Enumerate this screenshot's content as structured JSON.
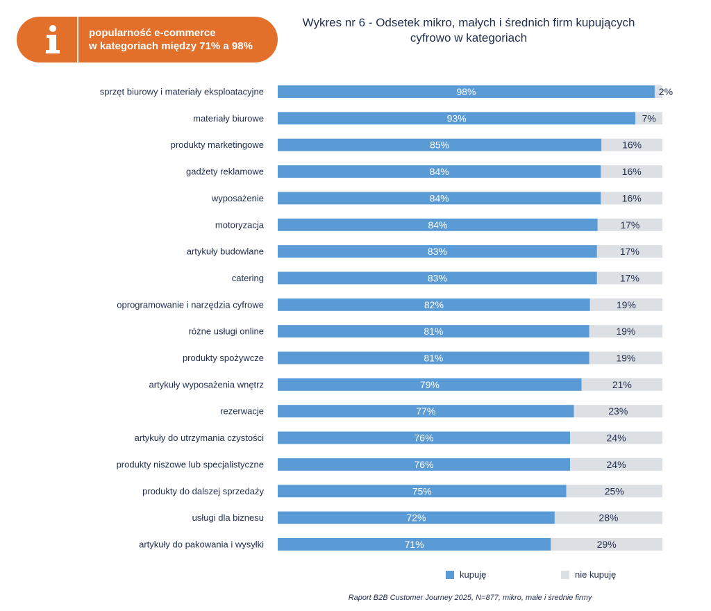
{
  "badge": {
    "icon": "info-icon",
    "line1": "popularność e-commerce",
    "line2": "w kategoriach między 71% a 98%",
    "color": "#e2702a"
  },
  "title": {
    "line1": "Wykres nr 6 - Odsetek mikro, małych i średnich firm kupujących",
    "line2": "cyfrowo w kategoriach"
  },
  "legend": {
    "buy": "kupuję",
    "not_buy": "nie kupuję"
  },
  "source": "Raport B2B Customer Journey 2025, N=877, mikro, małe i średnie firmy",
  "colors": {
    "buy": "#5b9bd5",
    "not_buy": "#dcdfe3"
  },
  "chart_data": {
    "type": "bar",
    "orientation": "horizontal",
    "stacked": true,
    "categories": [
      "sprzęt biurowy i materiały eksploatacyjne",
      "materiały biurowe",
      "produkty marketingowe",
      "gadżety reklamowe",
      "wyposażenie",
      "motoryzacja",
      "artykuły budowlane",
      "catering",
      "oprogramowanie i narzędzia cyfrowe",
      "różne usługi online",
      "produkty spożywcze",
      "artykuły wyposażenia wnętrz",
      "rezerwacje",
      "artykuły do utrzymania czystości",
      "produkty niszowe lub specjalistyczne",
      "produkty do dalszej sprzedaży",
      "usługi dla biznesu",
      "artykuły do pakowania i wysyłki"
    ],
    "series": [
      {
        "name": "kupuję",
        "values": [
          98,
          93,
          85,
          84,
          84,
          84,
          83,
          83,
          82,
          81,
          81,
          79,
          77,
          76,
          76,
          75,
          72,
          71
        ],
        "labels": [
          "98%",
          "93%",
          "85%",
          "84%",
          "84%",
          "84%",
          "83%",
          "83%",
          "82%",
          "81%",
          "81%",
          "79%",
          "77%",
          "76%",
          "76%",
          "75%",
          "72%",
          "71%"
        ]
      },
      {
        "name": "nie kupuję",
        "values": [
          2,
          7,
          16,
          16,
          16,
          17,
          17,
          17,
          19,
          19,
          19,
          21,
          23,
          24,
          24,
          25,
          28,
          29
        ],
        "labels": [
          "2%",
          "7%",
          "16%",
          "16%",
          "16%",
          "17%",
          "17%",
          "17%",
          "19%",
          "19%",
          "19%",
          "21%",
          "23%",
          "24%",
          "24%",
          "25%",
          "28%",
          "29%"
        ]
      }
    ],
    "xlim": [
      0,
      100
    ],
    "legend_position": "bottom"
  }
}
